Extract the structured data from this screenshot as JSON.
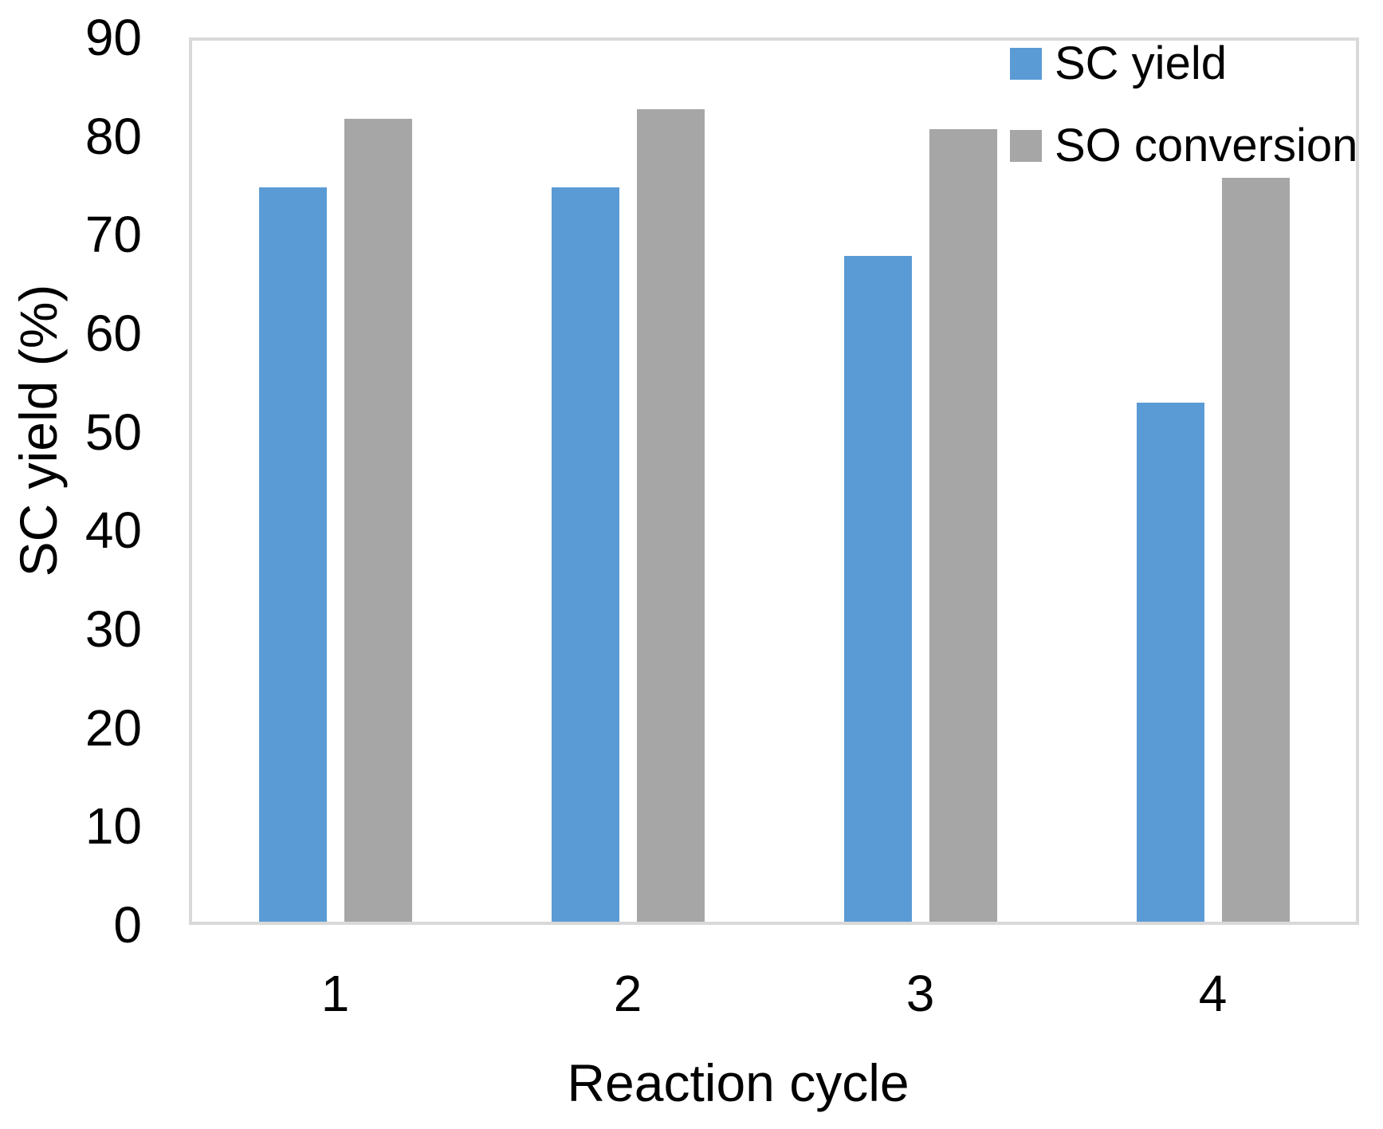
{
  "chart_data": {
    "type": "bar",
    "title": "",
    "categories": [
      "1",
      "2",
      "3",
      "4"
    ],
    "series": [
      {
        "name": "SC yield",
        "color": "#5B9BD5",
        "values": [
          75,
          75,
          68,
          53
        ]
      },
      {
        "name": "SO conversion",
        "color": "#A6A6A6",
        "values": [
          82,
          83,
          81,
          76
        ]
      }
    ],
    "xlabel": "Reaction cycle",
    "ylabel": "SC yield (%)",
    "ylim": [
      0,
      90
    ],
    "yticks": [
      0,
      10,
      20,
      30,
      40,
      50,
      60,
      70,
      80,
      90
    ],
    "grid": false,
    "legend_position": "top-right-inside",
    "plot_border_color": "#D9D9D9",
    "text_color": "#000000",
    "background_color": "#FFFFFF"
  }
}
